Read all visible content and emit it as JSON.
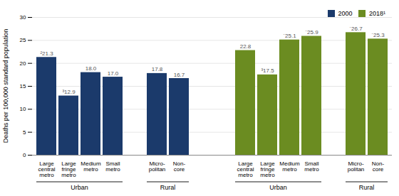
{
  "chart_data": {
    "type": "bar",
    "categories": [
      "Large\ncentral\nmetro",
      "Large\nfringe\nmetro",
      "Medium\nmetro",
      "Small\nmetro",
      "Micro-\npolitan",
      "Non-\ncore"
    ],
    "category_groups": [
      "Urban",
      "Urban",
      "Urban",
      "Urban",
      "Rural",
      "Rural"
    ],
    "series": [
      {
        "name": "2000",
        "color": "#1b3a6b",
        "values": [
          21.3,
          12.9,
          18.0,
          17.0,
          17.8,
          16.7
        ],
        "value_labels": [
          "²21.3",
          "³12.9",
          "18.0",
          "17.0",
          "17.8",
          "16.7"
        ]
      },
      {
        "name": "2018¹",
        "color": "#6b8c21",
        "values": [
          22.8,
          17.5,
          25.1,
          25.9,
          26.7,
          25.3
        ],
        "value_labels": [
          "22.8",
          "³17.5",
          "´25.1",
          "´25.9",
          "´26.7",
          "´25.3"
        ]
      }
    ],
    "ylabel": "Deaths per 100,000 standard population",
    "ylim": [
      0,
      30
    ],
    "yticks": [
      0,
      5,
      10,
      15,
      20,
      25,
      30
    ],
    "grid": true,
    "legend": "upper right",
    "data_labels": true
  }
}
